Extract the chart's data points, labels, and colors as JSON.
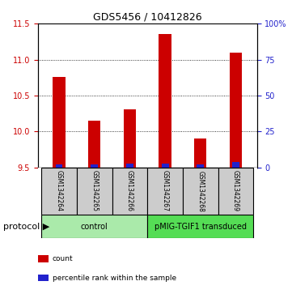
{
  "title": "GDS5456 / 10412826",
  "samples": [
    "GSM1342264",
    "GSM1342265",
    "GSM1342266",
    "GSM1342267",
    "GSM1342268",
    "GSM1342269"
  ],
  "counts": [
    10.76,
    10.15,
    10.31,
    11.35,
    9.9,
    11.1
  ],
  "percentile_ranks": [
    2.0,
    2.0,
    3.0,
    3.0,
    2.0,
    4.0
  ],
  "ylim_left": [
    9.5,
    11.5
  ],
  "yticks_left": [
    9.5,
    10.0,
    10.5,
    11.0,
    11.5
  ],
  "ylim_right": [
    0,
    100
  ],
  "yticks_right": [
    0,
    25,
    50,
    75,
    100
  ],
  "ytick_right_labels": [
    "0",
    "25",
    "50",
    "75",
    "100%"
  ],
  "baseline": 9.5,
  "bar_width": 0.35,
  "blue_bar_width": 0.2,
  "red_color": "#cc0000",
  "blue_color": "#2222cc",
  "groups": [
    {
      "label": "control",
      "samples": [
        0,
        1,
        2
      ],
      "color": "#aaeaaa"
    },
    {
      "label": "pMIG-TGIF1 transduced",
      "samples": [
        3,
        4,
        5
      ],
      "color": "#55dd55"
    }
  ],
  "protocol_label": "protocol",
  "legend_items": [
    {
      "color": "#cc0000",
      "label": "count"
    },
    {
      "color": "#2222cc",
      "label": "percentile rank within the sample"
    }
  ],
  "sample_box_color": "#cccccc",
  "title_fontsize": 9,
  "axis_fontsize": 7,
  "label_fontsize": 5.5,
  "legend_fontsize": 6.5,
  "protocol_fontsize": 8,
  "group_fontsize": 7
}
